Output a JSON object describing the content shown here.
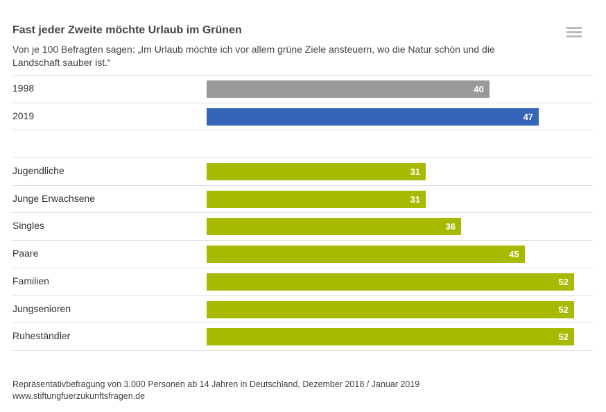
{
  "chart_data": {
    "type": "bar",
    "orientation": "horizontal",
    "title": "Fast jeder Zweite möchte Urlaub im Grünen",
    "subtitle": "Von je 100 Befragten sagen: „Im Urlaub möchte ich vor allem grüne Ziele ansteuern, wo die Natur schön und die Landschaft sauber ist.“",
    "groups": [
      {
        "categories": [
          "1998",
          "2019"
        ],
        "values": [
          40,
          47
        ],
        "colors": [
          "#999999",
          "#3565b8"
        ]
      },
      {
        "categories": [
          "Jugendliche",
          "Junge Erwachsene",
          "Singles",
          "Paare",
          "Familien",
          "Jungsenioren",
          "Ruheständler"
        ],
        "values": [
          31,
          31,
          36,
          45,
          52,
          52,
          52
        ],
        "colors": [
          "#a8ba00"
        ]
      }
    ],
    "xlim": [
      0,
      52
    ],
    "data_labels": true,
    "grid": false
  },
  "footer": {
    "source": "Repräsentativbefragung von 3.000 Personen ab 14 Jahren in Deutschland, Dezember 2018 / Januar 2019",
    "url": "www.stiftungfuerzukunftsfragen.de"
  },
  "icons": {
    "menu": "hamburger-menu-icon"
  }
}
